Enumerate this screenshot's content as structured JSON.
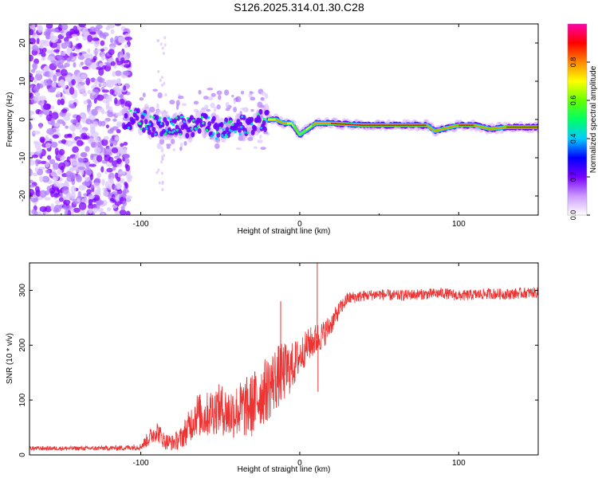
{
  "page_title": "S126.2025.314.01.30.C28",
  "chart_data": [
    {
      "type": "heatmap",
      "xlabel": "Height of straight line (km)",
      "ylabel": "Frequency (Hz)",
      "xlim": [
        -170,
        150
      ],
      "ylim": [
        -25,
        25
      ],
      "xticks": [
        -100,
        0,
        100
      ],
      "yticks": [
        -20,
        -10,
        0,
        10,
        20
      ],
      "colorbar": {
        "label": "Normalized spectral amplitude",
        "range": [
          0,
          1
        ],
        "ticks": [
          0,
          0.2,
          0.4,
          0.6,
          0.8
        ],
        "colors": [
          "#ffffff",
          "#cc99ff",
          "#7700ff",
          "#0000ff",
          "#00ccff",
          "#00ff66",
          "#66ff00",
          "#ffff00",
          "#ff8800",
          "#ff0000",
          "#ff00aa"
        ]
      },
      "ridge": {
        "description": "dominant frequency track",
        "x": [
          -110,
          -100,
          -90,
          -80,
          -70,
          -60,
          -50,
          -40,
          -30,
          -20,
          -15,
          -10,
          -5,
          0,
          10,
          20,
          40,
          60,
          80,
          85,
          90,
          100,
          110,
          120,
          130,
          140,
          150
        ],
        "y": [
          0,
          0,
          -2,
          -1,
          -2,
          -1,
          -3,
          -2,
          -1,
          0,
          0,
          -1,
          -1,
          -4,
          -1,
          -1,
          -1.5,
          -1.5,
          -1.5,
          -3,
          -2.5,
          -1.5,
          -1.5,
          -2.5,
          -2,
          -2,
          -2
        ],
        "amplitude": [
          0.3,
          0.35,
          0.35,
          0.3,
          0.35,
          0.35,
          0.35,
          0.35,
          0.4,
          0.65,
          0.75,
          0.8,
          0.7,
          0.55,
          0.8,
          0.85,
          0.9,
          0.9,
          0.85,
          0.75,
          0.8,
          0.85,
          0.85,
          0.8,
          0.85,
          0.9,
          0.9
        ]
      },
      "noise_region": {
        "x_range": [
          -170,
          -107
        ],
        "note": "scattered low amplitude blobs over full frequency range"
      }
    },
    {
      "type": "line",
      "xlabel": "Height of straight line (km)",
      "ylabel": "SNR (10 * v/v)",
      "xlim": [
        -170,
        150
      ],
      "ylim": [
        0,
        350
      ],
      "xticks": [
        -100,
        0,
        100
      ],
      "yticks": [
        0,
        100,
        200,
        300
      ],
      "color": "#ee3333",
      "series": [
        {
          "name": "SNR",
          "x": [
            -170,
            -150,
            -130,
            -110,
            -100,
            -95,
            -90,
            -85,
            -80,
            -75,
            -70,
            -65,
            -60,
            -55,
            -50,
            -45,
            -40,
            -35,
            -30,
            -25,
            -20,
            -15,
            -10,
            -5,
            0,
            5,
            10,
            15,
            20,
            25,
            30,
            40,
            50,
            60,
            70,
            80,
            90,
            100,
            110,
            120,
            130,
            140,
            150
          ],
          "values": [
            12,
            12,
            12,
            13,
            15,
            30,
            45,
            25,
            22,
            30,
            50,
            75,
            70,
            80,
            85,
            75,
            80,
            85,
            90,
            110,
            120,
            140,
            150,
            160,
            180,
            200,
            210,
            220,
            240,
            265,
            285,
            290,
            293,
            290,
            292,
            293,
            295,
            290,
            292,
            294,
            293,
            295,
            296
          ],
          "spread": [
            4,
            4,
            4,
            5,
            6,
            15,
            20,
            15,
            15,
            20,
            30,
            40,
            40,
            45,
            45,
            50,
            50,
            55,
            60,
            60,
            60,
            60,
            55,
            45,
            35,
            30,
            30,
            25,
            20,
            15,
            12,
            10,
            10,
            10,
            10,
            10,
            10,
            10,
            10,
            10,
            10,
            10,
            10
          ]
        }
      ],
      "spikes": [
        {
          "x": 11,
          "value": 350
        },
        {
          "x": 11.5,
          "value": 115
        },
        {
          "x": -12,
          "value": 280
        }
      ]
    }
  ]
}
